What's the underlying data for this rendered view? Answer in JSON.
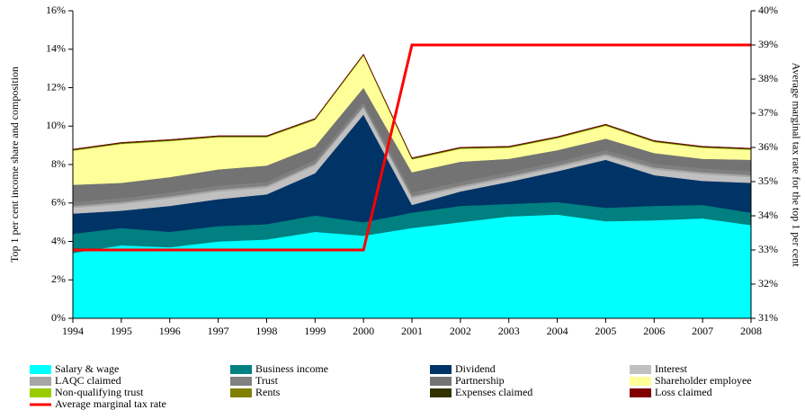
{
  "chart_data": {
    "type": "stacked-area",
    "y_label": "Top 1 per cent income share and composition",
    "y2_label": "Average marginal tax rate for the top 1 per cent",
    "x": [
      1994,
      1995,
      1996,
      1997,
      1998,
      1999,
      2000,
      2001,
      2002,
      2003,
      2004,
      2005,
      2006,
      2007,
      2008
    ],
    "xlim": [
      1994,
      2008
    ],
    "ylim": [
      0,
      16
    ],
    "yticks": [
      {
        "value": 0,
        "label": "0%"
      },
      {
        "value": 2,
        "label": "2%"
      },
      {
        "value": 4,
        "label": "4%"
      },
      {
        "value": 6,
        "label": "6%"
      },
      {
        "value": 8,
        "label": "8%"
      },
      {
        "value": 10,
        "label": "10%"
      },
      {
        "value": 12,
        "label": "12%"
      },
      {
        "value": 14,
        "label": "14%"
      },
      {
        "value": 16,
        "label": "16%"
      }
    ],
    "y2lim": [
      31,
      40
    ],
    "y2ticks": [
      {
        "value": 31,
        "label": "31%"
      },
      {
        "value": 32,
        "label": "32%"
      },
      {
        "value": 33,
        "label": "33%"
      },
      {
        "value": 34,
        "label": "34%"
      },
      {
        "value": 35,
        "label": "35%"
      },
      {
        "value": 36,
        "label": "36%"
      },
      {
        "value": 37,
        "label": "37%"
      },
      {
        "value": 38,
        "label": "38%"
      },
      {
        "value": 39,
        "label": "39%"
      },
      {
        "value": 40,
        "label": "40%"
      }
    ],
    "series": [
      {
        "name": "Salary & wage",
        "color": "#00ffff",
        "values": [
          3.4,
          3.8,
          3.7,
          4.0,
          4.1,
          4.5,
          4.3,
          4.7,
          5.0,
          5.3,
          5.4,
          5.05,
          5.1,
          5.2,
          4.85
        ]
      },
      {
        "name": "Business income",
        "color": "#008080",
        "values": [
          1.0,
          0.9,
          0.8,
          0.8,
          0.8,
          0.85,
          0.7,
          0.8,
          0.85,
          0.65,
          0.65,
          0.7,
          0.75,
          0.7,
          0.65
        ]
      },
      {
        "name": "Dividend",
        "color": "#003366",
        "values": [
          1.05,
          0.9,
          1.35,
          1.4,
          1.55,
          2.2,
          5.6,
          0.4,
          0.75,
          1.15,
          1.6,
          2.5,
          1.6,
          1.25,
          1.55
        ]
      },
      {
        "name": "Interest",
        "color": "#c0c0c0",
        "values": [
          0.3,
          0.35,
          0.4,
          0.4,
          0.35,
          0.4,
          0.35,
          0.35,
          0.2,
          0.2,
          0.2,
          0.2,
          0.3,
          0.35,
          0.3
        ]
      },
      {
        "name": "LAQC claimed",
        "color": "#a6a6a6",
        "values": [
          0.1,
          0.1,
          0.1,
          0.1,
          0.1,
          0.1,
          0.1,
          0.1,
          0.1,
          0.1,
          0.1,
          0.1,
          0.1,
          0.1,
          0.1
        ]
      },
      {
        "name": "Trust",
        "color": "#808080",
        "values": [
          0.2,
          0.2,
          0.2,
          0.2,
          0.2,
          0.2,
          0.2,
          0.2,
          0.2,
          0.2,
          0.2,
          0.2,
          0.2,
          0.2,
          0.2
        ]
      },
      {
        "name": "Partnership",
        "color": "#737373",
        "values": [
          0.9,
          0.8,
          0.8,
          0.85,
          0.85,
          0.7,
          0.75,
          1.05,
          1.05,
          0.7,
          0.6,
          0.6,
          0.55,
          0.5,
          0.6
        ]
      },
      {
        "name": "Shareholder employee",
        "color": "#ffff99",
        "values": [
          1.77,
          2.02,
          1.87,
          1.67,
          1.47,
          1.37,
          1.67,
          0.67,
          0.67,
          0.57,
          0.62,
          0.67,
          0.57,
          0.57,
          0.52
        ]
      },
      {
        "name": "Non-qualifying trust",
        "color": "#99cc00",
        "values": [
          0.02,
          0.02,
          0.02,
          0.02,
          0.02,
          0.02,
          0.02,
          0.02,
          0.02,
          0.02,
          0.02,
          0.02,
          0.02,
          0.02,
          0.02
        ]
      },
      {
        "name": "Rents",
        "color": "#808000",
        "values": [
          0.02,
          0.02,
          0.02,
          0.02,
          0.02,
          0.02,
          0.02,
          0.02,
          0.02,
          0.02,
          0.02,
          0.02,
          0.02,
          0.02,
          0.02
        ]
      },
      {
        "name": "Expenses claimed",
        "color": "#333300",
        "values": [
          0.03,
          0.03,
          0.03,
          0.03,
          0.03,
          0.03,
          0.03,
          0.03,
          0.03,
          0.03,
          0.03,
          0.03,
          0.03,
          0.03,
          0.03
        ]
      },
      {
        "name": "Loss claimed",
        "color": "#800000",
        "values": [
          0.01,
          0.01,
          0.01,
          0.01,
          0.01,
          0.01,
          0.01,
          0.01,
          0.01,
          0.01,
          0.01,
          0.01,
          0.01,
          0.01,
          0.01
        ]
      },
      {
        "name": "Average marginal tax rate",
        "color": "#ff0000",
        "type": "line",
        "axis": "y2",
        "values": [
          33,
          33,
          33,
          33,
          33,
          33,
          33,
          39,
          39,
          39,
          39,
          39,
          39,
          39,
          39
        ]
      }
    ]
  }
}
